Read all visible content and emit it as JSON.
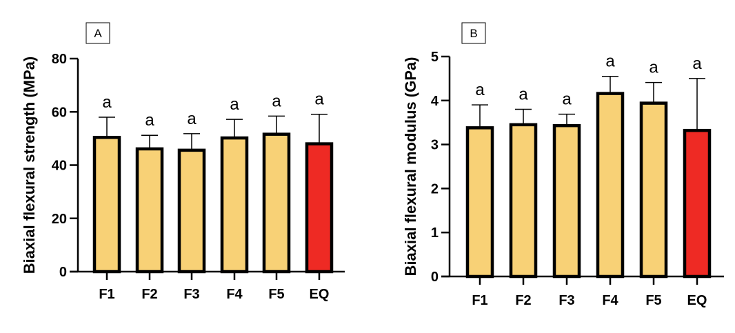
{
  "chart_data": [
    {
      "type": "bar",
      "panel_label": "A",
      "categories": [
        "F1",
        "F2",
        "F3",
        "F4",
        "F5",
        "EQ"
      ],
      "values": [
        50.4,
        46.1,
        45.6,
        50.2,
        51.6,
        48.0
      ],
      "error_upper": [
        58.0,
        51.2,
        51.8,
        57.2,
        58.4,
        59.1
      ],
      "annotations": [
        "a",
        "a",
        "a",
        "a",
        "a",
        "a"
      ],
      "colors": [
        "#f8d176",
        "#f8d176",
        "#f8d176",
        "#f8d176",
        "#f8d176",
        "#ee2a24"
      ],
      "xlabel": "",
      "ylabel": "Biaxial flexural strength (MPa)",
      "ylim": [
        0,
        80
      ],
      "yticks": [
        "0",
        "20",
        "40",
        "60",
        "80"
      ],
      "grid": false
    },
    {
      "type": "bar",
      "panel_label": "B",
      "categories": [
        "F1",
        "F2",
        "F3",
        "F4",
        "F5",
        "EQ"
      ],
      "values": [
        3.38,
        3.45,
        3.43,
        4.16,
        3.94,
        3.32
      ],
      "error_upper": [
        3.9,
        3.8,
        3.69,
        4.55,
        4.41,
        4.5
      ],
      "annotations": [
        "a",
        "a",
        "a",
        "a",
        "a",
        "a"
      ],
      "colors": [
        "#f8d176",
        "#f8d176",
        "#f8d176",
        "#f8d176",
        "#f8d176",
        "#ee2a24"
      ],
      "xlabel": "",
      "ylabel": "Biaxial flexural modulus (GPa)",
      "ylim": [
        0,
        5
      ],
      "yticks": [
        "0",
        "1",
        "2",
        "3",
        "4",
        "5"
      ],
      "grid": false
    }
  ]
}
